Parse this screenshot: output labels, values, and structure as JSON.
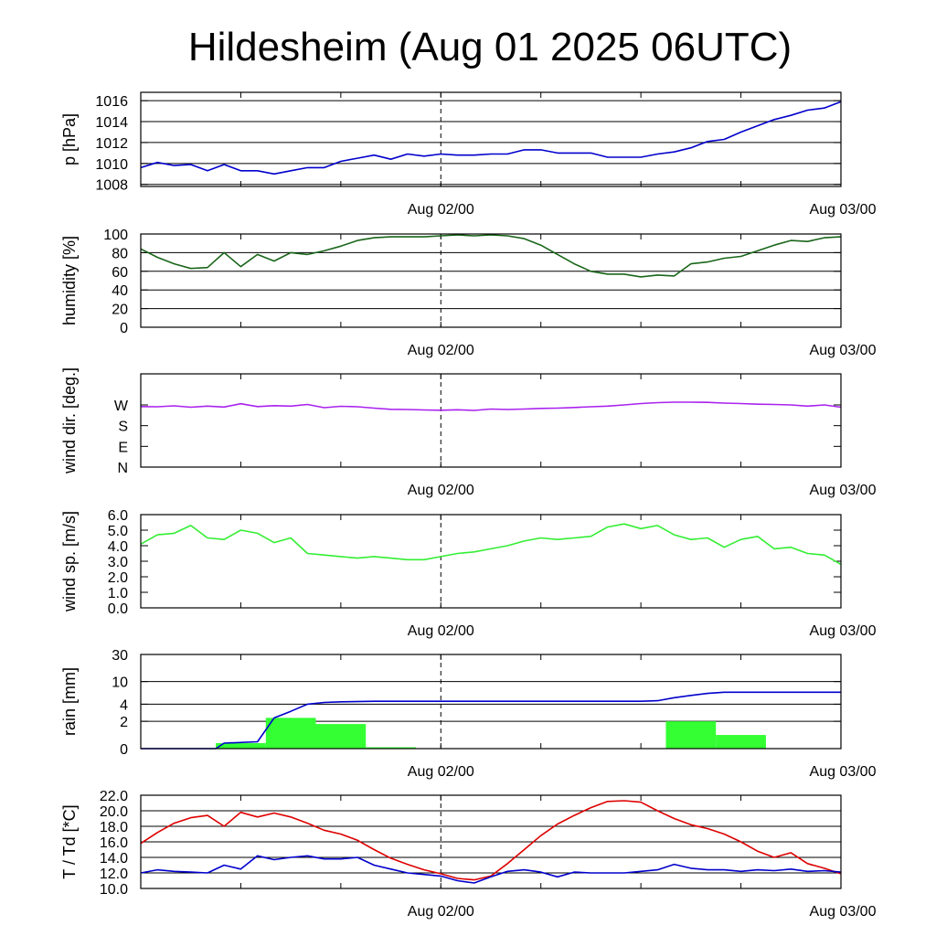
{
  "title": "Hildesheim (Aug 01 2025 06UTC)",
  "x_tick_labels": [
    "Aug 02/00",
    "Aug 03/00"
  ],
  "chart_data": [
    {
      "type": "line",
      "ylabel": "p [hPa]",
      "ylim": [
        1007.8,
        1016.8
      ],
      "y_ticks": [
        1008,
        1010,
        1012,
        1014,
        1016
      ],
      "y_tick_labels": [
        "1008",
        "1010",
        "1012",
        "1014",
        "1016"
      ],
      "grid": true,
      "series": [
        {
          "color": "#0000cc",
          "x": [
            0,
            1,
            2,
            3,
            4,
            5,
            6,
            7,
            8,
            9,
            10,
            11,
            12,
            13,
            14,
            15,
            16,
            17,
            18,
            19,
            20,
            21,
            22,
            23,
            24,
            25,
            26,
            27,
            28,
            29,
            30,
            31,
            32,
            33,
            34,
            35,
            36,
            37,
            38,
            39,
            40,
            41,
            42
          ],
          "y": [
            1009.6,
            1010.1,
            1009.8,
            1009.9,
            1009.3,
            1009.9,
            1009.3,
            1009.3,
            1009.0,
            1009.3,
            1009.6,
            1009.6,
            1010.2,
            1010.5,
            1010.8,
            1010.4,
            1010.9,
            1010.7,
            1010.9,
            1010.8,
            1010.8,
            1010.9,
            1010.9,
            1011.3,
            1011.3,
            1011.0,
            1011.0,
            1011.0,
            1010.6,
            1010.6,
            1010.6,
            1010.9,
            1011.1,
            1011.5,
            1012.1,
            1012.3,
            1013.0,
            1013.6,
            1014.2,
            1014.6,
            1015.1,
            1015.3,
            1015.9
          ]
        }
      ]
    },
    {
      "type": "line",
      "ylabel": "humidity [%]",
      "ylim": [
        0,
        100
      ],
      "y_ticks": [
        0,
        20,
        40,
        60,
        80,
        100
      ],
      "y_tick_labels": [
        "0",
        "20",
        "40",
        "60",
        "80",
        "100"
      ],
      "grid": true,
      "series": [
        {
          "color": "#1a661a",
          "x": [
            0,
            1,
            2,
            3,
            4,
            5,
            6,
            7,
            8,
            9,
            10,
            11,
            12,
            13,
            14,
            15,
            16,
            17,
            18,
            19,
            20,
            21,
            22,
            23,
            24,
            25,
            26,
            27,
            28,
            29,
            30,
            31,
            32,
            33,
            34,
            35,
            36,
            37,
            38,
            39,
            40,
            41,
            42
          ],
          "y": [
            84,
            75,
            68,
            63,
            64,
            80,
            65,
            78,
            71,
            80,
            78,
            82,
            87,
            93,
            96,
            97,
            97,
            97,
            98,
            99,
            98,
            99,
            98,
            95,
            88,
            78,
            68,
            60,
            57,
            57,
            54,
            56,
            55,
            68,
            70,
            74,
            76,
            82,
            88,
            93,
            92,
            96,
            97
          ]
        }
      ]
    },
    {
      "type": "line",
      "ylabel": "wind dir. [deg.]",
      "ylim": [
        0,
        405
      ],
      "y_ticks": [
        0,
        90,
        180,
        270
      ],
      "y_tick_labels": [
        "N",
        "E",
        "S",
        "W"
      ],
      "grid": false,
      "series": [
        {
          "color": "#aa22ee",
          "x": [
            0,
            1,
            2,
            3,
            4,
            5,
            6,
            7,
            8,
            9,
            10,
            11,
            12,
            13,
            14,
            15,
            16,
            17,
            18,
            19,
            20,
            21,
            22,
            23,
            24,
            25,
            26,
            27,
            28,
            29,
            30,
            31,
            32,
            33,
            34,
            35,
            36,
            37,
            38,
            39,
            40,
            41,
            42
          ],
          "y": [
            263,
            262,
            266,
            260,
            265,
            261,
            275,
            263,
            267,
            265,
            272,
            258,
            264,
            262,
            256,
            251,
            250,
            248,
            247,
            249,
            246,
            252,
            250,
            252,
            255,
            256,
            259,
            262,
            265,
            270,
            276,
            280,
            282,
            282,
            281,
            278,
            276,
            273,
            272,
            270,
            265,
            270,
            260
          ]
        }
      ]
    },
    {
      "type": "line",
      "ylabel": "wind sp. [m/s]",
      "ylim": [
        0,
        6
      ],
      "y_ticks": [
        0,
        1,
        2,
        3,
        4,
        5,
        6
      ],
      "y_tick_labels": [
        "0.0",
        "1.0",
        "2.0",
        "3.0",
        "4.0",
        "5.0",
        "6.0"
      ],
      "grid": false,
      "series": [
        {
          "color": "#33ee33",
          "x": [
            0,
            1,
            2,
            3,
            4,
            5,
            6,
            7,
            8,
            9,
            10,
            11,
            12,
            13,
            14,
            15,
            16,
            17,
            18,
            19,
            20,
            21,
            22,
            23,
            24,
            25,
            26,
            27,
            28,
            29,
            30,
            31,
            32,
            33,
            34,
            35,
            36,
            37,
            38,
            39,
            40,
            41,
            42
          ],
          "y": [
            4.1,
            4.7,
            4.8,
            5.3,
            4.5,
            4.4,
            5.0,
            4.8,
            4.2,
            4.5,
            3.5,
            3.4,
            3.3,
            3.2,
            3.3,
            3.2,
            3.1,
            3.1,
            3.3,
            3.5,
            3.6,
            3.8,
            4.0,
            4.3,
            4.5,
            4.4,
            4.5,
            4.6,
            5.2,
            5.4,
            5.1,
            5.3,
            4.7,
            4.4,
            4.5,
            3.9,
            4.4,
            4.6,
            3.8,
            3.9,
            3.5,
            3.4,
            2.8
          ]
        }
      ]
    },
    {
      "type": "bar+line",
      "ylabel": "rain [mm]",
      "y_ticks": [
        0,
        2,
        4,
        10,
        30
      ],
      "y_tick_labels": [
        "0",
        "2",
        "4",
        "10",
        "30"
      ],
      "scale": "nonlinear (0-2 linear, 2-30 log)",
      "grid": true,
      "bars": {
        "color": "#33ff33",
        "x_start": [
          4.5,
          7.5,
          10.5,
          13.5,
          31.5,
          34.5
        ],
        "x_end": [
          7.5,
          10.5,
          13.5,
          16.5,
          34.5,
          37.5
        ],
        "values": [
          0.4,
          2.3,
          1.8,
          0.1,
          2.0,
          1.0
        ]
      },
      "series": [
        {
          "color": "#0000cc",
          "x": [
            0,
            4.5,
            5,
            7,
            8,
            9,
            10,
            11,
            12,
            14,
            16,
            18,
            20,
            22,
            24,
            26,
            28,
            30,
            31,
            32,
            33,
            34,
            35,
            36,
            38,
            40,
            42
          ],
          "y": [
            0,
            0,
            0.4,
            0.5,
            2.3,
            3.0,
            4.0,
            4.3,
            4.4,
            4.5,
            4.5,
            4.5,
            4.5,
            4.5,
            4.5,
            4.5,
            4.5,
            4.5,
            4.6,
            5.2,
            5.7,
            6.2,
            6.5,
            6.5,
            6.5,
            6.5,
            6.5
          ]
        }
      ]
    },
    {
      "type": "line",
      "ylabel": "T / Td [*C]",
      "ylim": [
        10,
        22
      ],
      "y_ticks": [
        10,
        12,
        14,
        16,
        18,
        20,
        22
      ],
      "y_tick_labels": [
        "10.0",
        "12.0",
        "14.0",
        "16.0",
        "18.0",
        "20.0",
        "22.0"
      ],
      "grid": true,
      "series": [
        {
          "color": "#dd0000",
          "x": [
            0,
            1,
            2,
            3,
            4,
            5,
            6,
            7,
            8,
            9,
            10,
            11,
            12,
            13,
            14,
            15,
            16,
            17,
            18,
            19,
            20,
            21,
            22,
            23,
            24,
            25,
            26,
            27,
            28,
            29,
            30,
            31,
            32,
            33,
            34,
            35,
            36,
            37,
            38,
            39,
            40,
            41,
            42
          ],
          "y": [
            15.8,
            17.2,
            18.4,
            19.1,
            19.4,
            18.0,
            19.8,
            19.2,
            19.7,
            19.2,
            18.4,
            17.5,
            17.0,
            16.2,
            15.0,
            13.9,
            13.1,
            12.4,
            11.9,
            11.3,
            11.1,
            11.6,
            13.2,
            15.0,
            16.8,
            18.3,
            19.4,
            20.4,
            21.2,
            21.3,
            21.1,
            20.0,
            19.0,
            18.2,
            17.7,
            17.0,
            16.0,
            14.8,
            14.0,
            14.6,
            13.2,
            12.6,
            11.9
          ]
        },
        {
          "color": "#0000cc",
          "x": [
            0,
            1,
            2,
            3,
            4,
            5,
            6,
            7,
            8,
            9,
            10,
            11,
            12,
            13,
            14,
            15,
            16,
            17,
            18,
            19,
            20,
            21,
            22,
            23,
            24,
            25,
            26,
            27,
            28,
            29,
            30,
            31,
            32,
            33,
            34,
            35,
            36,
            37,
            38,
            39,
            40,
            41,
            42
          ],
          "y": [
            12.0,
            12.4,
            12.2,
            12.1,
            12.0,
            13.0,
            12.5,
            14.2,
            13.7,
            14.0,
            14.2,
            13.8,
            13.8,
            14.0,
            13.0,
            12.5,
            12.0,
            11.8,
            11.6,
            11.0,
            10.7,
            11.5,
            12.2,
            12.4,
            12.1,
            11.5,
            12.1,
            12.0,
            12.0,
            12.0,
            12.2,
            12.4,
            13.1,
            12.6,
            12.4,
            12.4,
            12.2,
            12.4,
            12.3,
            12.5,
            12.2,
            12.3,
            12.1
          ]
        }
      ]
    }
  ]
}
